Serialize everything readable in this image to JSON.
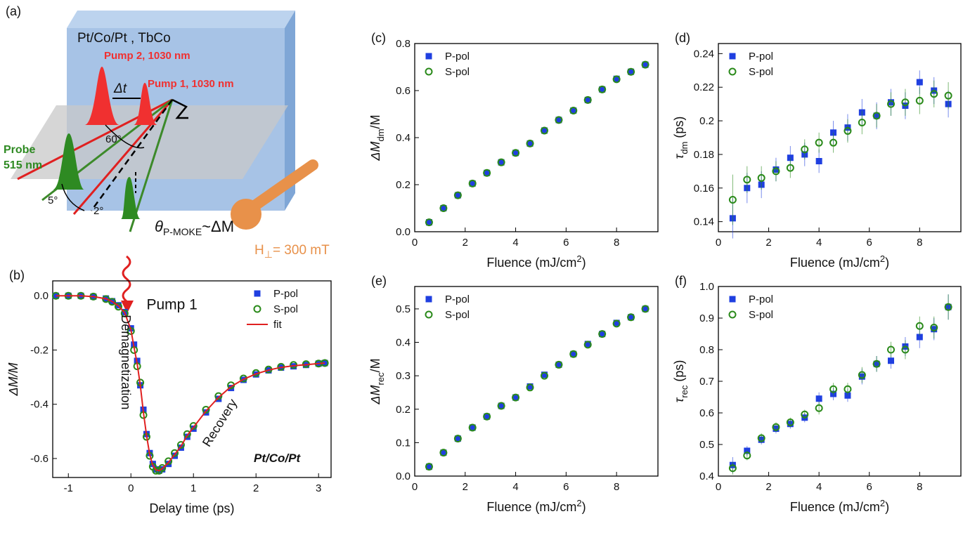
{
  "diagram": {
    "panel": "(a)",
    "sample": "Pt/Co/Pt , TbCo",
    "pump2": "Pump 2, 1030 nm",
    "pump1": "Pump 1, 1030 nm",
    "delay": "Δt",
    "angle_pump": "60°",
    "probe": "Probe",
    "probe_wl": "515 nm",
    "angle_probe": "5°",
    "angle_small": "2°",
    "kerr_symbol": "θ",
    "kerr_sub": "P-MOKE",
    "kerr_tail": "~ΔM",
    "field": "H",
    "field_sub": "⊥",
    "field_tail": "= 300 mT"
  },
  "chart_data": [
    {
      "type": "scatter",
      "panel": "(b)",
      "xlabel": [
        "Delay time (ps)"
      ],
      "ylabel": [
        "ΔM/M"
      ],
      "x": [
        -1.2,
        -1.0,
        -0.8,
        -0.6,
        -0.4,
        -0.3,
        -0.2,
        -0.1,
        0,
        0.05,
        0.1,
        0.15,
        0.2,
        0.25,
        0.3,
        0.35,
        0.4,
        0.45,
        0.5,
        0.6,
        0.7,
        0.8,
        0.9,
        1.0,
        1.2,
        1.4,
        1.6,
        1.8,
        2.0,
        2.2,
        2.4,
        2.6,
        2.8,
        3.0,
        3.1
      ],
      "xlim": [
        -1.25,
        3.2
      ],
      "xticks": [
        -1,
        0,
        1,
        2,
        3
      ],
      "ylim": [
        -0.67,
        0.055
      ],
      "yticks": [
        {
          "value": 0,
          "label": "0.0"
        },
        -0.2,
        -0.4,
        -0.6
      ],
      "legend": "upper right",
      "annotations": [
        "Pump 1",
        "Demagnetization",
        "Recovery",
        "Pt/Co/Pt"
      ],
      "series": [
        {
          "name": "P-pol",
          "color": "#1f3fe0",
          "marker": "square",
          "values": [
            0,
            0,
            0,
            -0.003,
            -0.01,
            -0.02,
            -0.035,
            -0.06,
            -0.12,
            -0.18,
            -0.24,
            -0.33,
            -0.42,
            -0.51,
            -0.58,
            -0.62,
            -0.64,
            -0.645,
            -0.64,
            -0.62,
            -0.59,
            -0.56,
            -0.52,
            -0.49,
            -0.43,
            -0.38,
            -0.34,
            -0.31,
            -0.29,
            -0.275,
            -0.265,
            -0.26,
            -0.255,
            -0.25,
            -0.248
          ]
        },
        {
          "name": "S-pol",
          "color": "#2a8a1a",
          "marker": "circle",
          "values": [
            0,
            0,
            0,
            -0.003,
            -0.012,
            -0.022,
            -0.04,
            -0.065,
            -0.13,
            -0.2,
            -0.26,
            -0.32,
            -0.44,
            -0.52,
            -0.59,
            -0.63,
            -0.645,
            -0.645,
            -0.635,
            -0.61,
            -0.58,
            -0.55,
            -0.51,
            -0.48,
            -0.42,
            -0.37,
            -0.33,
            -0.305,
            -0.285,
            -0.272,
            -0.262,
            -0.255,
            -0.252,
            -0.25,
            -0.248
          ]
        },
        {
          "name": "fit",
          "color": "#e02020",
          "marker": "line",
          "values": [
            0,
            0,
            0,
            -0.003,
            -0.011,
            -0.021,
            -0.037,
            -0.062,
            -0.125,
            -0.19,
            -0.25,
            -0.33,
            -0.43,
            -0.515,
            -0.585,
            -0.625,
            -0.642,
            -0.645,
            -0.638,
            -0.615,
            -0.585,
            -0.555,
            -0.515,
            -0.485,
            -0.425,
            -0.375,
            -0.335,
            -0.308,
            -0.288,
            -0.274,
            -0.264,
            -0.258,
            -0.254,
            -0.25,
            -0.248
          ]
        }
      ]
    },
    {
      "type": "scatter",
      "panel": "(c)",
      "xlabel": [
        "Fluence (mJ/cm",
        "2",
        ")"
      ],
      "ylabel": [
        "ΔM",
        "dm",
        "/M"
      ],
      "x": [
        0.57,
        1.14,
        1.71,
        2.29,
        2.86,
        3.43,
        4.0,
        4.57,
        5.14,
        5.71,
        6.29,
        6.86,
        7.43,
        8.0,
        8.57,
        9.14
      ],
      "xlim": [
        0,
        9.64
      ],
      "xticks": [
        0,
        2,
        4,
        6,
        8
      ],
      "ylim": [
        0,
        0.8
      ],
      "yticks": [
        {
          "value": 0,
          "label": "0.0"
        },
        0.2,
        0.4,
        0.6,
        0.8
      ],
      "legend": "upper left",
      "series": [
        {
          "name": "P-pol",
          "color": "#1f3fe0",
          "marker": "square",
          "values": [
            0.04,
            0.1,
            0.155,
            0.205,
            0.25,
            0.295,
            0.335,
            0.375,
            0.43,
            0.475,
            0.515,
            0.56,
            0.605,
            0.65,
            0.68,
            0.71
          ]
        },
        {
          "name": "S-pol",
          "color": "#2a8a1a",
          "marker": "circle",
          "values": [
            0.04,
            0.1,
            0.155,
            0.205,
            0.25,
            0.295,
            0.335,
            0.375,
            0.43,
            0.475,
            0.515,
            0.56,
            0.605,
            0.648,
            0.68,
            0.71
          ]
        }
      ]
    },
    {
      "type": "scatter",
      "panel": "(d)",
      "xlabel": [
        "Fluence (mJ/cm",
        "2",
        ")"
      ],
      "ylabel": [
        "τ",
        "dm",
        " (ps)"
      ],
      "x": [
        0.57,
        1.14,
        1.71,
        2.29,
        2.86,
        3.43,
        4.0,
        4.57,
        5.14,
        5.71,
        6.29,
        6.86,
        7.43,
        8.0,
        8.57,
        9.14
      ],
      "xlim": [
        0,
        9.64
      ],
      "xticks": [
        0,
        2,
        4,
        6,
        8
      ],
      "ylim": [
        0.134,
        0.246
      ],
      "yticks": [
        0.14,
        0.16,
        0.18,
        0.2,
        0.22,
        0.24
      ],
      "legend": "upper left",
      "series": [
        {
          "name": "P-pol",
          "color": "#1f3fe0",
          "marker": "square",
          "values": [
            0.142,
            0.16,
            0.162,
            0.171,
            0.178,
            0.18,
            0.176,
            0.193,
            0.196,
            0.205,
            0.203,
            0.211,
            0.209,
            0.223,
            0.218,
            0.21
          ],
          "errors": [
            0.012,
            0.009,
            0.008,
            0.007,
            0.007,
            0.007,
            0.007,
            0.007,
            0.008,
            0.008,
            0.008,
            0.008,
            0.008,
            0.007,
            0.008,
            0.008
          ]
        },
        {
          "name": "S-pol",
          "color": "#2a8a1a",
          "marker": "circle",
          "values": [
            0.153,
            0.165,
            0.166,
            0.17,
            0.172,
            0.183,
            0.187,
            0.187,
            0.194,
            0.199,
            0.203,
            0.21,
            0.211,
            0.212,
            0.216,
            0.215
          ],
          "errors": [
            0.015,
            0.008,
            0.007,
            0.006,
            0.006,
            0.006,
            0.006,
            0.006,
            0.007,
            0.007,
            0.007,
            0.007,
            0.008,
            0.008,
            0.008,
            0.008
          ]
        }
      ]
    },
    {
      "type": "scatter",
      "panel": "(e)",
      "xlabel": [
        "Fluence (mJ/cm",
        "2",
        ")"
      ],
      "ylabel": [
        "ΔM",
        "rec",
        "/M"
      ],
      "x": [
        0.57,
        1.14,
        1.71,
        2.29,
        2.86,
        3.43,
        4.0,
        4.57,
        5.14,
        5.71,
        6.29,
        6.86,
        7.43,
        8.0,
        8.57,
        9.14
      ],
      "xlim": [
        0,
        9.64
      ],
      "xticks": [
        0,
        2,
        4,
        6,
        8
      ],
      "ylim": [
        0,
        0.567
      ],
      "yticks": [
        {
          "value": 0,
          "label": "0.0"
        },
        0.1,
        0.2,
        0.3,
        0.4,
        0.5
      ],
      "legend": "upper left",
      "series": [
        {
          "name": "P-pol",
          "color": "#1f3fe0",
          "marker": "square",
          "values": [
            0.028,
            0.07,
            0.112,
            0.145,
            0.178,
            0.21,
            0.235,
            0.268,
            0.303,
            0.333,
            0.365,
            0.395,
            0.425,
            0.458,
            0.475,
            0.5
          ]
        },
        {
          "name": "S-pol",
          "color": "#2a8a1a",
          "marker": "circle",
          "values": [
            0.028,
            0.07,
            0.112,
            0.145,
            0.178,
            0.21,
            0.235,
            0.265,
            0.3,
            0.333,
            0.365,
            0.393,
            0.425,
            0.456,
            0.475,
            0.5
          ]
        }
      ]
    },
    {
      "type": "scatter",
      "panel": "(f)",
      "xlabel": [
        "Fluence (mJ/cm",
        "2",
        ")"
      ],
      "ylabel": [
        "τ",
        "rec",
        " (ps)"
      ],
      "x": [
        0.57,
        1.14,
        1.71,
        2.29,
        2.86,
        3.43,
        4.0,
        4.57,
        5.14,
        5.71,
        6.29,
        6.86,
        7.43,
        8.0,
        8.57,
        9.14
      ],
      "xlim": [
        0,
        9.64
      ],
      "xticks": [
        0,
        2,
        4,
        6,
        8
      ],
      "ylim": [
        0.4,
        1.0
      ],
      "yticks": [
        0.4,
        0.5,
        0.6,
        0.7,
        0.8,
        0.9,
        {
          "value": 1.0,
          "label": "1.0"
        }
      ],
      "legend": "upper left",
      "series": [
        {
          "name": "P-pol",
          "color": "#1f3fe0",
          "marker": "square",
          "values": [
            0.435,
            0.48,
            0.515,
            0.55,
            0.565,
            0.585,
            0.645,
            0.66,
            0.655,
            0.715,
            0.755,
            0.765,
            0.81,
            0.84,
            0.865,
            0.935
          ],
          "errors": [
            0.025,
            0.015,
            0.015,
            0.015,
            0.015,
            0.015,
            0.02,
            0.02,
            0.02,
            0.025,
            0.025,
            0.025,
            0.03,
            0.035,
            0.035,
            0.04
          ]
        },
        {
          "name": "S-pol",
          "color": "#2a8a1a",
          "marker": "circle",
          "values": [
            0.425,
            0.465,
            0.52,
            0.555,
            0.57,
            0.595,
            0.615,
            0.675,
            0.675,
            0.72,
            0.755,
            0.8,
            0.8,
            0.875,
            0.87,
            0.935
          ],
          "errors": [
            0.02,
            0.015,
            0.015,
            0.015,
            0.015,
            0.015,
            0.02,
            0.02,
            0.02,
            0.025,
            0.025,
            0.025,
            0.03,
            0.03,
            0.035,
            0.04
          ]
        }
      ]
    }
  ]
}
